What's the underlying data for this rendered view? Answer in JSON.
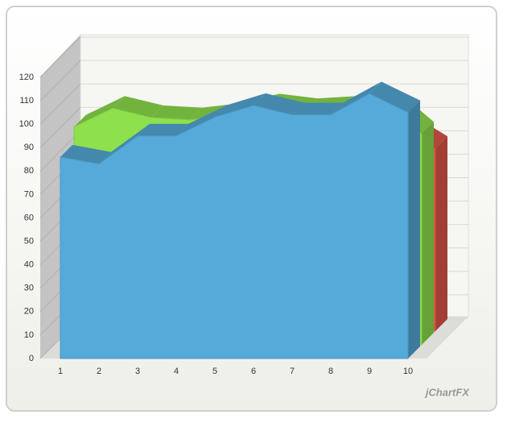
{
  "chart_data": {
    "type": "area3d",
    "watermark": "jChartFX",
    "categories": [
      "1",
      "2",
      "3",
      "4",
      "5",
      "6",
      "7",
      "8",
      "9",
      "10"
    ],
    "series": [
      {
        "color": "#55aad9",
        "values": [
          86,
          83,
          95,
          95,
          103,
          108,
          104,
          104,
          113,
          105
        ]
      },
      {
        "color": "#8fe04d",
        "values": [
          93,
          101,
          97,
          96,
          98,
          102,
          100,
          101,
          104,
          90
        ]
      },
      {
        "color": "#e0584a",
        "values": [
          80,
          85,
          84,
          86,
          88,
          90,
          87,
          86,
          88,
          78
        ]
      }
    ],
    "ylim": [
      0,
      120
    ],
    "yticks": [
      0,
      10,
      20,
      30,
      40,
      50,
      60,
      70,
      80,
      90,
      100,
      110,
      120
    ],
    "grid": true
  }
}
